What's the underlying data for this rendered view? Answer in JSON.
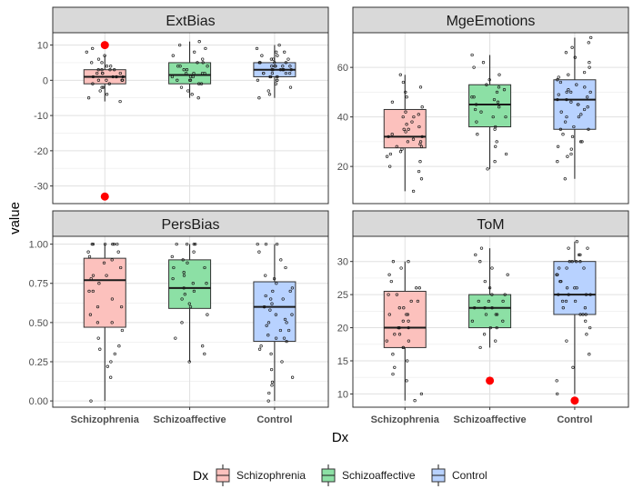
{
  "chart_data": {
    "type": "boxplot",
    "xlabel": "Dx",
    "ylabel": "value",
    "categories": [
      "Schizophrenia",
      "Schizoaffective",
      "Control"
    ],
    "colors": {
      "Schizophrenia": "#F8766D",
      "Schizoaffective": "#00BA38",
      "Control": "#619CFF"
    },
    "outlier_color": "#FF0000",
    "legend": {
      "title": "Dx",
      "entries": [
        "Schizophrenia",
        "Schizoaffective",
        "Control"
      ],
      "position": "bottom"
    },
    "grid": true,
    "panels": [
      {
        "title": "ExtBias",
        "ylim": [
          -35,
          13.5
        ],
        "yticks": [
          10,
          0,
          -10,
          -20,
          -30
        ],
        "ytick_labels": [
          "10",
          "0",
          "-10",
          "-20",
          "-30"
        ],
        "boxes": [
          {
            "category": "Schizophrenia",
            "q1": -1,
            "median": 1,
            "q3": 3,
            "whisker_low": -6,
            "whisker_high": 7,
            "outliers": [
              10,
              -33
            ]
          },
          {
            "category": "Schizoaffective",
            "q1": -1,
            "median": 1.5,
            "q3": 5,
            "whisker_low": -5,
            "whisker_high": 11,
            "outliers": []
          },
          {
            "category": "Control",
            "q1": 1,
            "median": 3,
            "q3": 5,
            "whisker_low": -5,
            "whisker_high": 10,
            "outliers": []
          }
        ],
        "points": [
          [
            -6,
            -5,
            -4,
            -3,
            -2,
            -1,
            -1,
            0,
            0,
            0,
            1,
            1,
            1,
            1,
            2,
            2,
            2,
            3,
            3,
            3,
            4,
            4,
            5,
            5,
            6,
            7,
            8,
            9,
            -2,
            0,
            1,
            2,
            3
          ],
          [
            -5,
            -4,
            -3,
            -2,
            -1,
            -1,
            0,
            0,
            1,
            1,
            1,
            2,
            2,
            2,
            3,
            3,
            4,
            4,
            5,
            5,
            6,
            7,
            8,
            9,
            10,
            11,
            0,
            2,
            4
          ],
          [
            -5,
            -4,
            -3,
            -2,
            -1,
            0,
            0,
            1,
            1,
            1,
            2,
            2,
            2,
            3,
            3,
            3,
            3,
            4,
            4,
            4,
            5,
            5,
            5,
            6,
            6,
            7,
            7,
            8,
            8,
            9,
            10,
            0,
            1,
            2,
            3,
            4,
            5,
            6,
            2,
            3,
            4,
            5
          ]
        ]
      },
      {
        "title": "MgeEmotions",
        "ylim": [
          5,
          74
        ],
        "yticks": [
          60,
          40,
          20
        ],
        "ytick_labels": [
          "60",
          "40",
          "20"
        ],
        "boxes": [
          {
            "category": "Schizophrenia",
            "q1": 27.5,
            "median": 32,
            "q3": 43,
            "whisker_low": 10,
            "whisker_high": 57,
            "outliers": []
          },
          {
            "category": "Schizoaffective",
            "q1": 36,
            "median": 45,
            "q3": 53,
            "whisker_low": 19,
            "whisker_high": 65,
            "outliers": []
          },
          {
            "category": "Control",
            "q1": 35,
            "median": 47,
            "q3": 55,
            "whisker_low": 15,
            "whisker_high": 72,
            "outliers": []
          }
        ],
        "points": [
          [
            10,
            15,
            18,
            20,
            22,
            24,
            25,
            26,
            27,
            28,
            29,
            30,
            30,
            31,
            32,
            32,
            33,
            34,
            35,
            36,
            37,
            38,
            40,
            41,
            42,
            44,
            46,
            48,
            50,
            52,
            54,
            57,
            28,
            35,
            40
          ],
          [
            19,
            22,
            25,
            28,
            30,
            33,
            35,
            36,
            38,
            40,
            42,
            43,
            44,
            45,
            46,
            47,
            48,
            50,
            51,
            52,
            53,
            55,
            57,
            60,
            62,
            65,
            40,
            48
          ],
          [
            15,
            22,
            24,
            25,
            27,
            28,
            30,
            32,
            33,
            35,
            36,
            38,
            40,
            41,
            42,
            43,
            44,
            45,
            46,
            47,
            47,
            48,
            49,
            50,
            50,
            51,
            52,
            53,
            54,
            55,
            56,
            57,
            58,
            60,
            62,
            64,
            66,
            68,
            70,
            72,
            40,
            45,
            50,
            30,
            35
          ]
        ]
      },
      {
        "title": "PersBias",
        "ylim": [
          -0.04,
          1.05
        ],
        "yticks": [
          1.0,
          0.75,
          0.5,
          0.25,
          0.0
        ],
        "ytick_labels": [
          "1.00",
          "0.75",
          "0.50",
          "0.25",
          "0.00"
        ],
        "boxes": [
          {
            "category": "Schizophrenia",
            "q1": 0.47,
            "median": 0.77,
            "q3": 0.91,
            "whisker_low": 0.0,
            "whisker_high": 1.0,
            "outliers": []
          },
          {
            "category": "Schizoaffective",
            "q1": 0.59,
            "median": 0.72,
            "q3": 0.9,
            "whisker_low": 0.25,
            "whisker_high": 1.0,
            "outliers": []
          },
          {
            "category": "Control",
            "q1": 0.38,
            "median": 0.6,
            "q3": 0.76,
            "whisker_low": 0.0,
            "whisker_high": 1.0,
            "outliers": []
          }
        ],
        "points": [
          [
            0.0,
            0.15,
            0.22,
            0.25,
            0.3,
            0.35,
            0.4,
            0.45,
            0.5,
            0.55,
            0.6,
            0.65,
            0.7,
            0.75,
            0.78,
            0.8,
            0.85,
            0.88,
            0.9,
            0.92,
            0.95,
            1.0,
            1.0,
            1.0,
            1.0,
            1.0,
            1.0,
            0.6,
            0.7,
            0.8,
            0.5,
            0.95,
            0.33
          ],
          [
            0.25,
            0.3,
            0.35,
            0.4,
            0.5,
            0.55,
            0.6,
            0.62,
            0.65,
            0.68,
            0.7,
            0.72,
            0.75,
            0.78,
            0.8,
            0.82,
            0.85,
            0.88,
            0.9,
            0.92,
            0.95,
            1.0,
            1.0,
            1.0,
            1.0,
            0.75,
            0.85
          ],
          [
            0.0,
            0.05,
            0.1,
            0.12,
            0.15,
            0.2,
            0.25,
            0.3,
            0.33,
            0.35,
            0.38,
            0.4,
            0.42,
            0.45,
            0.48,
            0.5,
            0.52,
            0.55,
            0.58,
            0.6,
            0.62,
            0.65,
            0.67,
            0.7,
            0.72,
            0.75,
            0.78,
            0.8,
            0.85,
            0.9,
            0.95,
            1.0,
            1.0,
            1.0,
            0.5,
            0.6,
            0.7,
            0.4,
            0.55,
            0.65,
            0.45
          ]
        ]
      },
      {
        "title": "ToM",
        "ylim": [
          8,
          33.8
        ],
        "yticks": [
          30,
          25,
          20,
          15,
          10
        ],
        "ytick_labels": [
          "30",
          "25",
          "20",
          "15",
          "10"
        ],
        "boxes": [
          {
            "category": "Schizophrenia",
            "q1": 17,
            "median": 20,
            "q3": 25.5,
            "whisker_low": 9,
            "whisker_high": 30,
            "outliers": []
          },
          {
            "category": "Schizoaffective",
            "q1": 20,
            "median": 23,
            "q3": 25,
            "whisker_low": 17,
            "whisker_high": 32,
            "outliers": [
              12
            ]
          },
          {
            "category": "Control",
            "q1": 22,
            "median": 25,
            "q3": 30,
            "whisker_low": 10,
            "whisker_high": 33,
            "outliers": [
              9
            ]
          }
        ],
        "points": [
          [
            9,
            10,
            12,
            13,
            14,
            15,
            16,
            17,
            17,
            18,
            18,
            19,
            19,
            20,
            20,
            20,
            21,
            21,
            22,
            22,
            23,
            23,
            24,
            25,
            25,
            26,
            26,
            27,
            28,
            29,
            30,
            30,
            20,
            22,
            24
          ],
          [
            17,
            18,
            19,
            20,
            20,
            21,
            21,
            22,
            22,
            23,
            23,
            23,
            24,
            24,
            25,
            25,
            26,
            27,
            28,
            29,
            30,
            31,
            32,
            22,
            24
          ],
          [
            10,
            12,
            14,
            16,
            18,
            19,
            20,
            21,
            22,
            22,
            23,
            23,
            24,
            24,
            25,
            25,
            25,
            26,
            26,
            27,
            27,
            28,
            28,
            29,
            29,
            30,
            30,
            30,
            31,
            31,
            32,
            32,
            33,
            24,
            26,
            28,
            30,
            22,
            25,
            29
          ]
        ]
      }
    ]
  }
}
